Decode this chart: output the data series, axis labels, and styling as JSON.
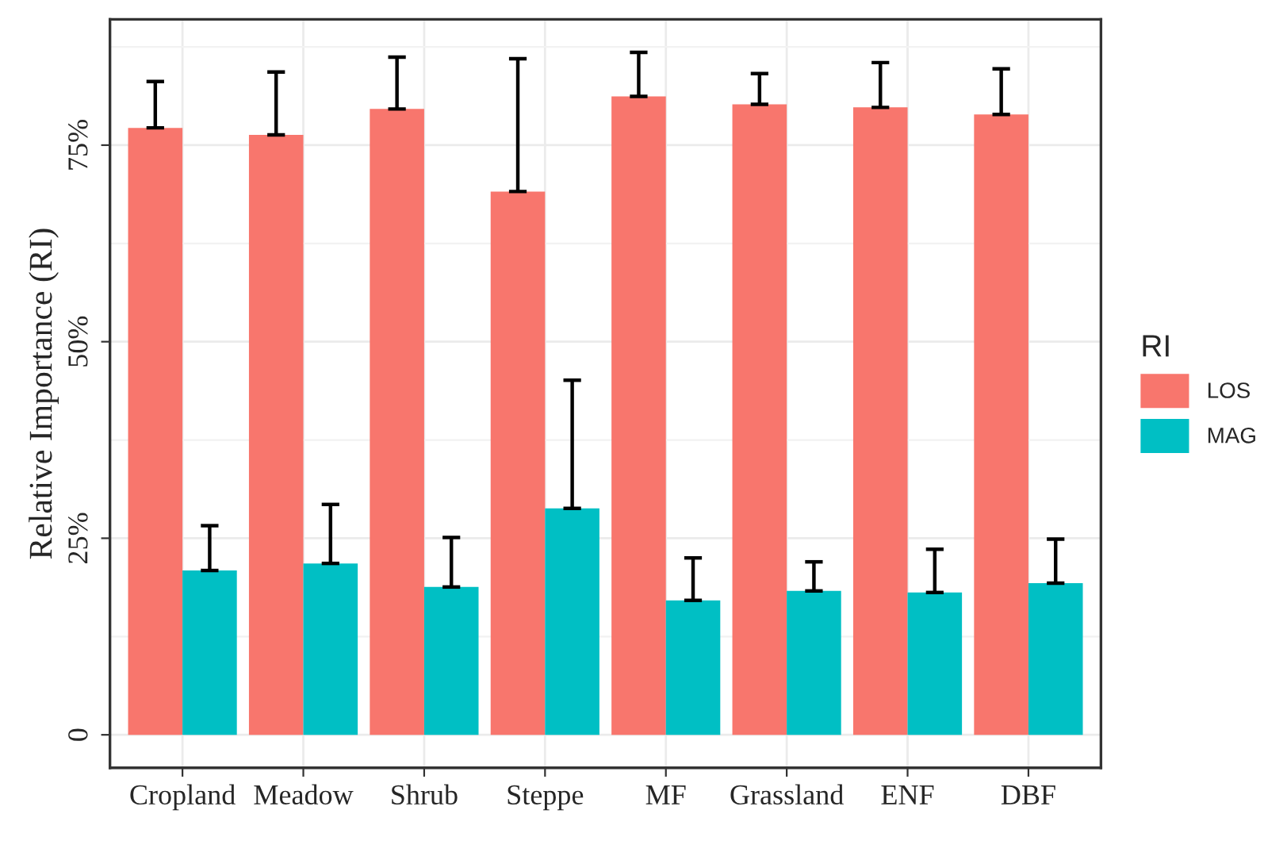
{
  "chart_data": {
    "type": "bar",
    "ylabel": "Relative Importance (RI)",
    "legend_title": "RI",
    "categories": [
      "Cropland",
      "Meadow",
      "Shrub",
      "Steppe",
      "MF",
      "Grassland",
      "ENF",
      "DBF"
    ],
    "series": [
      {
        "name": "LOS",
        "color": "#f8766d",
        "values": [
          77.2,
          76.3,
          79.6,
          69.1,
          81.2,
          80.2,
          79.8,
          78.9
        ],
        "errors": [
          [
            77.2,
            83.1
          ],
          [
            76.3,
            84.3
          ],
          [
            79.6,
            86.2
          ],
          [
            69.1,
            86.0
          ],
          [
            81.2,
            86.8
          ],
          [
            80.2,
            84.1
          ],
          [
            79.8,
            85.5
          ],
          [
            78.9,
            84.7
          ]
        ]
      },
      {
        "name": "MAG",
        "color": "#00bfc4",
        "values": [
          20.9,
          21.8,
          18.8,
          28.8,
          17.1,
          18.3,
          18.1,
          19.3
        ],
        "errors": [
          [
            20.9,
            26.6
          ],
          [
            21.8,
            29.3
          ],
          [
            18.8,
            25.1
          ],
          [
            28.8,
            45.1
          ],
          [
            17.1,
            22.5
          ],
          [
            18.3,
            22.0
          ],
          [
            18.1,
            23.6
          ],
          [
            19.3,
            24.9
          ]
        ]
      }
    ],
    "ylim": [
      -4.2,
      91.0
    ],
    "yticks": [
      {
        "value": 0,
        "label": "0"
      },
      {
        "value": 25,
        "label": "25%"
      },
      {
        "value": 50,
        "label": "50%"
      },
      {
        "value": 75,
        "label": "75%"
      }
    ],
    "grid": true,
    "legend": "right"
  }
}
